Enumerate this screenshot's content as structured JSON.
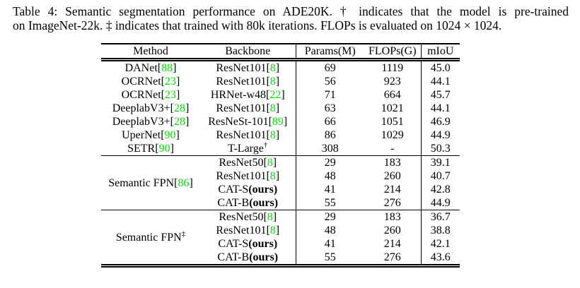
{
  "caption": {
    "line1": "Table 4: Semantic segmentation performance on ADE20K. † indicates that the model is pre-trained",
    "line2": "on ImageNet-22k. ‡ indicates that trained with 80k iterations. FLOPs is evaluated on 1024 × 1024."
  },
  "colors": {
    "citation_green": "#00dd00",
    "text": "#000000",
    "background": "#ffffff"
  },
  "table": {
    "columns": [
      "Method",
      "Backbone",
      "Params(M)",
      "FLOPs(G)",
      "mIoU"
    ],
    "sections": [
      {
        "type": "plain",
        "rows": [
          {
            "method": [
              {
                "t": "DANet["
              },
              {
                "t": "88",
                "green": true
              },
              {
                "t": "]"
              }
            ],
            "backbone": [
              {
                "t": "ResNet101["
              },
              {
                "t": "8",
                "green": true
              },
              {
                "t": "]"
              }
            ],
            "params": "69",
            "flops": "1119",
            "miou": "45.0"
          },
          {
            "method": [
              {
                "t": "OCRNet["
              },
              {
                "t": "23",
                "green": true
              },
              {
                "t": "]"
              }
            ],
            "backbone": [
              {
                "t": "ResNet101["
              },
              {
                "t": "8",
                "green": true
              },
              {
                "t": "]"
              }
            ],
            "params": "56",
            "flops": "923",
            "miou": "44.1"
          },
          {
            "method": [
              {
                "t": "OCRNet["
              },
              {
                "t": "23",
                "green": true
              },
              {
                "t": "]"
              }
            ],
            "backbone": [
              {
                "t": "HRNet-w48["
              },
              {
                "t": "22",
                "green": true
              },
              {
                "t": "]"
              }
            ],
            "params": "71",
            "flops": "664",
            "miou": "45.7"
          },
          {
            "method": [
              {
                "t": "DeeplabV3+["
              },
              {
                "t": "28",
                "green": true
              },
              {
                "t": "]"
              }
            ],
            "backbone": [
              {
                "t": "ResNet101["
              },
              {
                "t": "8",
                "green": true
              },
              {
                "t": "]"
              }
            ],
            "params": "63",
            "flops": "1021",
            "miou": "44.1"
          },
          {
            "method": [
              {
                "t": "DeeplabV3+["
              },
              {
                "t": "28",
                "green": true
              },
              {
                "t": "]"
              }
            ],
            "backbone": [
              {
                "t": "ResNeSt-101["
              },
              {
                "t": "89",
                "green": true
              },
              {
                "t": "]"
              }
            ],
            "params": "66",
            "flops": "1051",
            "miou": "46.9"
          },
          {
            "method": [
              {
                "t": "UperNet["
              },
              {
                "t": "90",
                "green": true
              },
              {
                "t": "]"
              }
            ],
            "backbone": [
              {
                "t": "ResNet101["
              },
              {
                "t": "8",
                "green": true
              },
              {
                "t": "]"
              }
            ],
            "params": "86",
            "flops": "1029",
            "miou": "44.9"
          },
          {
            "method": [
              {
                "t": "SETR["
              },
              {
                "t": "90",
                "green": true
              },
              {
                "t": "]"
              }
            ],
            "backbone": [
              {
                "t": "T-Large"
              },
              {
                "t": "†",
                "sup": true
              }
            ],
            "params": "308",
            "flops": "-",
            "miou": "50.3"
          }
        ]
      },
      {
        "type": "grouped",
        "label": [
          {
            "t": "Semantic FPN["
          },
          {
            "t": "86",
            "green": true
          },
          {
            "t": "]"
          }
        ],
        "rows": [
          {
            "backbone": [
              {
                "t": "ResNet50["
              },
              {
                "t": "8",
                "green": true
              },
              {
                "t": "]"
              }
            ],
            "params": "29",
            "flops": "183",
            "miou": "39.1"
          },
          {
            "backbone": [
              {
                "t": "ResNet101["
              },
              {
                "t": "8",
                "green": true
              },
              {
                "t": "]"
              }
            ],
            "params": "48",
            "flops": "260",
            "miou": "40.7"
          },
          {
            "backbone": [
              {
                "t": "CAT-S"
              },
              {
                "t": "(ours)",
                "bold": true
              }
            ],
            "params": "41",
            "flops": "214",
            "miou": "42.8"
          },
          {
            "backbone": [
              {
                "t": "CAT-B"
              },
              {
                "t": "(ours)",
                "bold": true
              }
            ],
            "params": "55",
            "flops": "276",
            "miou": "44.9"
          }
        ]
      },
      {
        "type": "grouped",
        "label": [
          {
            "t": "Semantic FPN"
          },
          {
            "t": "‡",
            "sup": true
          }
        ],
        "rows": [
          {
            "backbone": [
              {
                "t": "ResNet50["
              },
              {
                "t": "8",
                "green": true
              },
              {
                "t": "]"
              }
            ],
            "params": "29",
            "flops": "183",
            "miou": "36.7"
          },
          {
            "backbone": [
              {
                "t": "ResNet101["
              },
              {
                "t": "8",
                "green": true
              },
              {
                "t": "]"
              }
            ],
            "params": "48",
            "flops": "260",
            "miou": "38.8"
          },
          {
            "backbone": [
              {
                "t": "CAT-S"
              },
              {
                "t": "(ours)",
                "bold": true
              }
            ],
            "params": "41",
            "flops": "214",
            "miou": "42.1"
          },
          {
            "backbone": [
              {
                "t": "CAT-B"
              },
              {
                "t": "(ours)",
                "bold": true
              }
            ],
            "params": "55",
            "flops": "276",
            "miou": "43.6"
          }
        ]
      }
    ]
  }
}
